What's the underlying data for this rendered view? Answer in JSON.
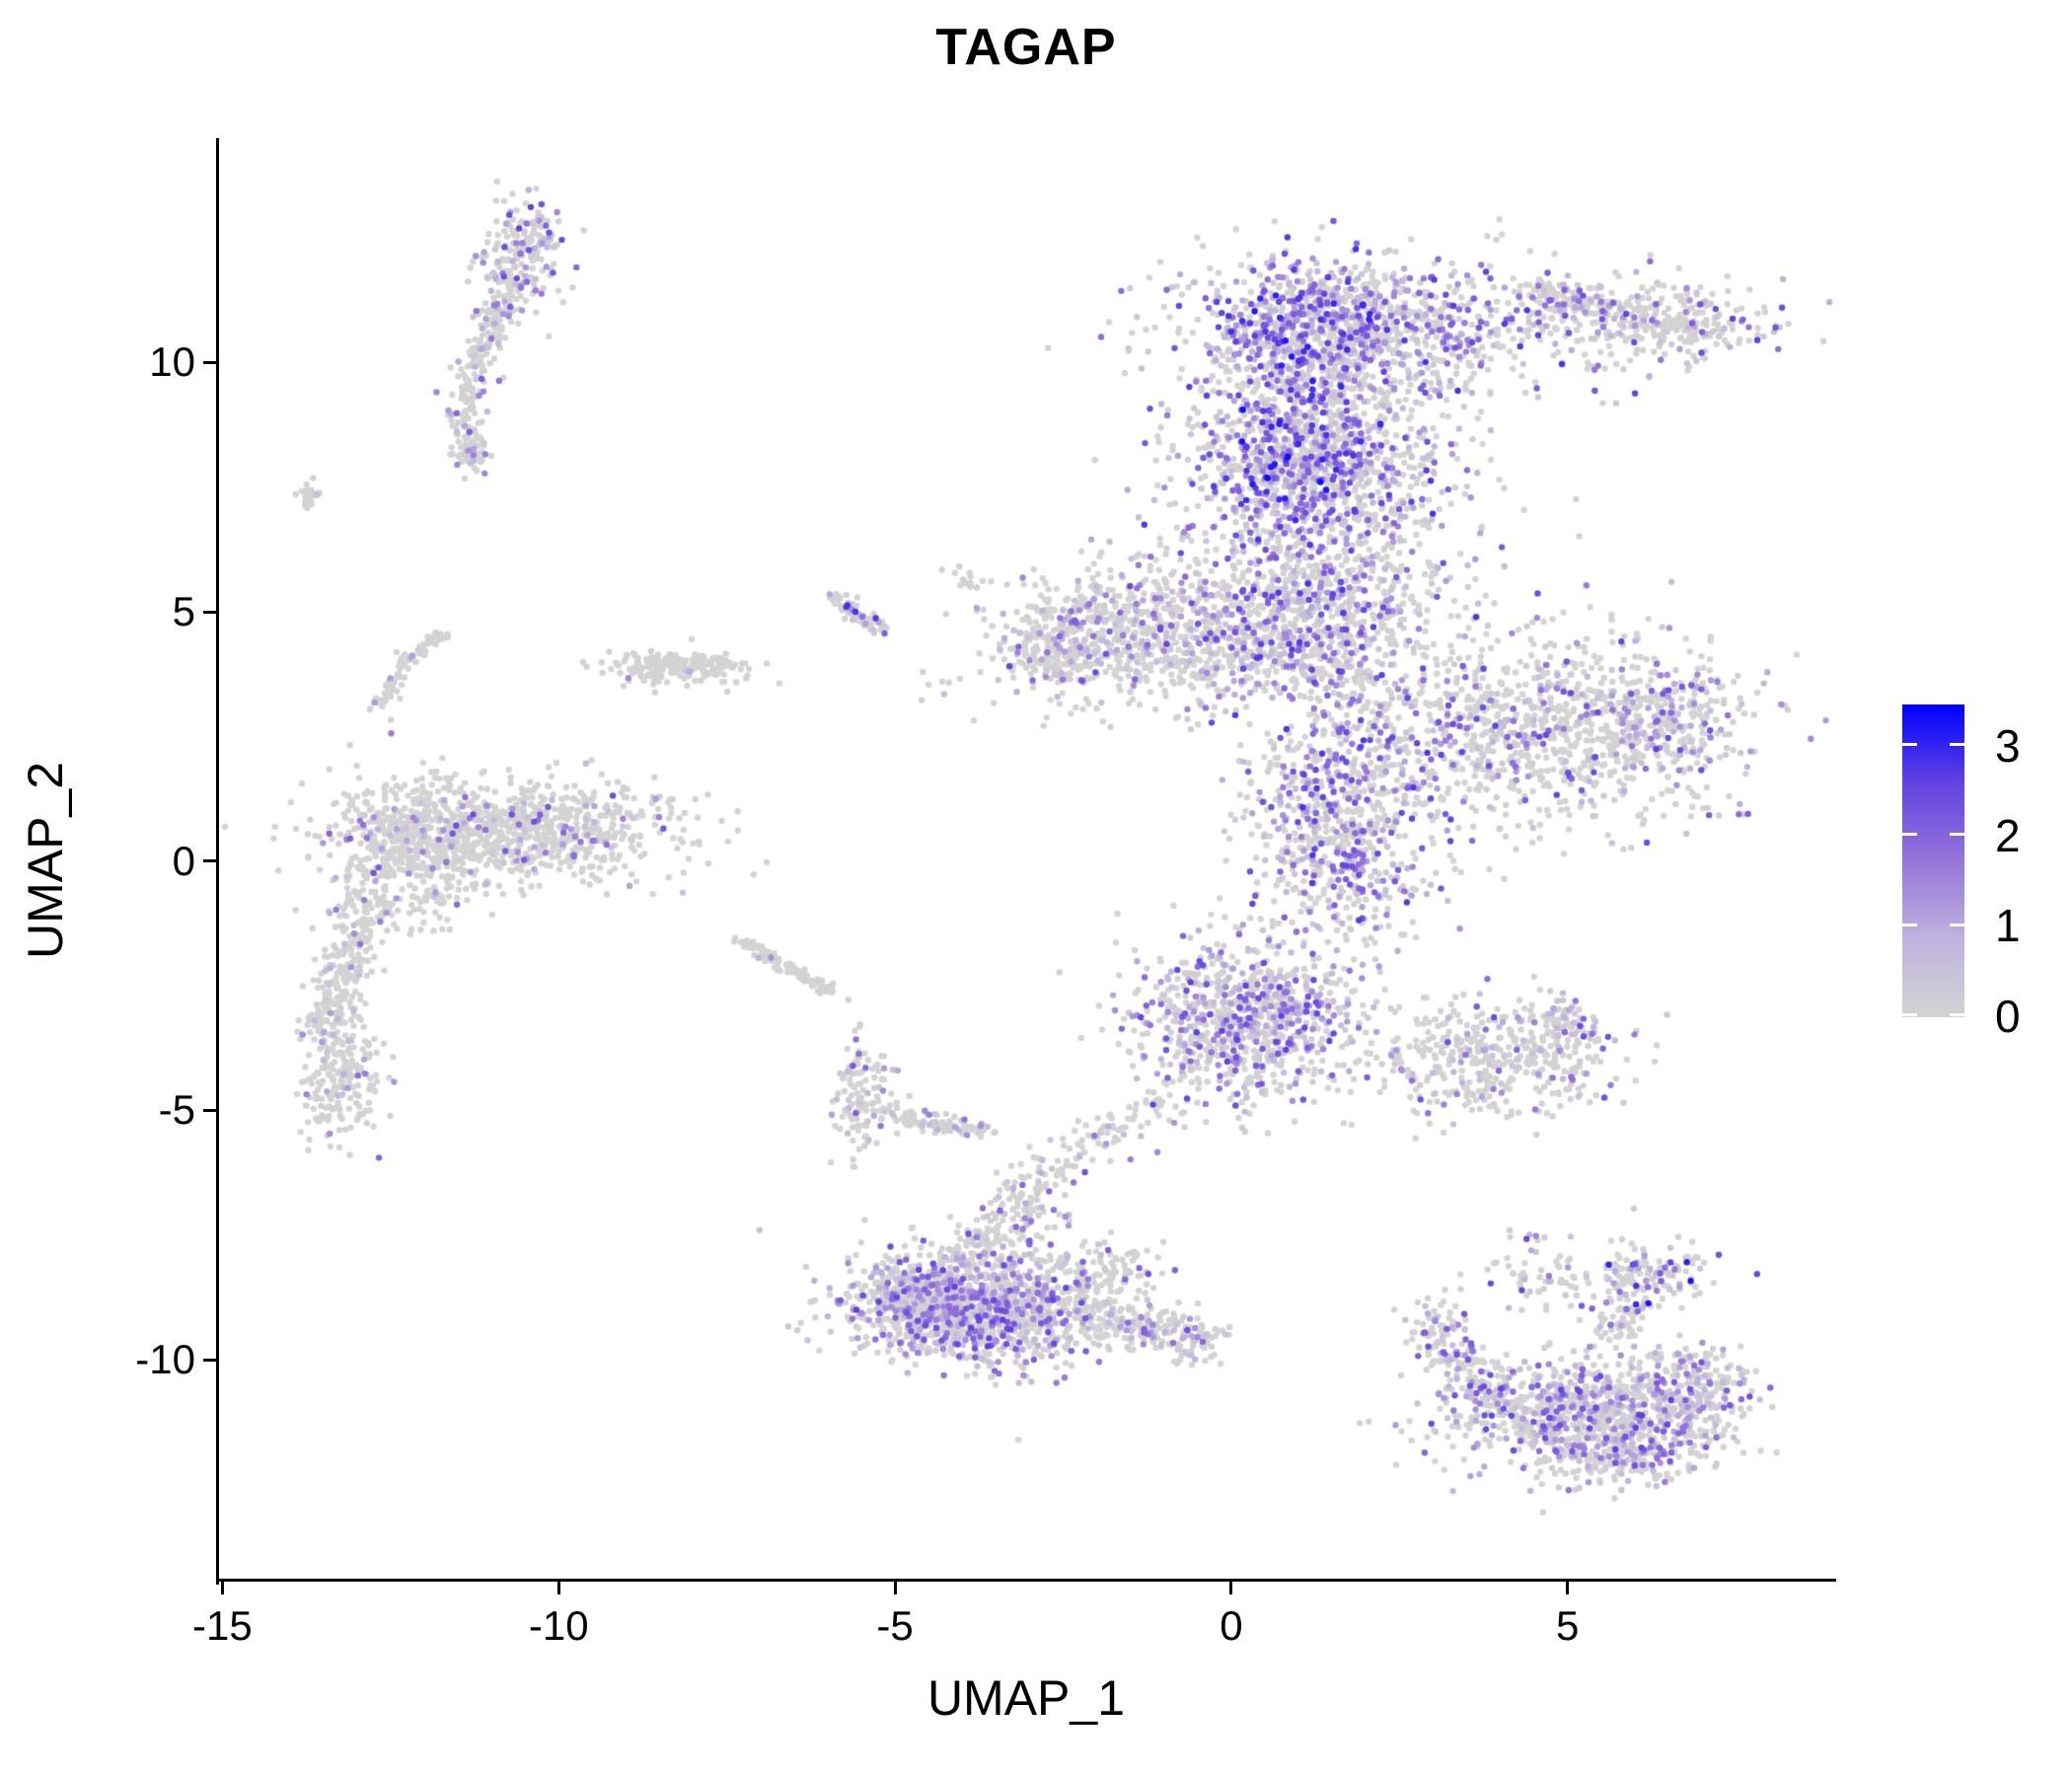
{
  "title": "TAGAP",
  "colors": {
    "background": "#ffffff",
    "axis": "#000000",
    "point_low": "#d3d3d3",
    "point_high": "#0000ff",
    "ramp": [
      "#D3D3D3",
      "#BFB3DE",
      "#9675DB",
      "#6243E0",
      "#0000FF"
    ]
  },
  "chart_data": {
    "type": "scatter",
    "title": "TAGAP",
    "xlabel": "UMAP_1",
    "ylabel": "UMAP_2",
    "x_ticks": [
      -15,
      -10,
      -5,
      0,
      5
    ],
    "y_ticks": [
      -10,
      -5,
      0,
      5,
      10
    ],
    "xlim": [
      -15.05,
      8.95
    ],
    "ylim": [
      -14.45,
      14.5
    ],
    "grid": false,
    "point_radius_px": 3.2,
    "legend": {
      "position": "right",
      "ticks": [
        0,
        1,
        2,
        3
      ],
      "max": 3.43,
      "low_label_value": 0,
      "high_label_value": 3
    },
    "clusters": [
      {
        "name": "left-top-worm-head",
        "type": "blob",
        "cx": -10.55,
        "cy": 12.2,
        "sx": 0.3,
        "sy": 0.55,
        "n": 200,
        "ef": 0.38,
        "em": 2.6
      },
      {
        "name": "left-top-worm-tail",
        "type": "arc",
        "x1": -10.75,
        "y1": 11.3,
        "cx": -11.45,
        "cy": 9.9,
        "x2": -11.35,
        "y2": 8.1,
        "w": 0.14,
        "n": 200,
        "ef": 0.2,
        "em": 2.2
      },
      {
        "name": "left-top-worm-end",
        "type": "blob",
        "cx": -11.3,
        "cy": 8.15,
        "sx": 0.12,
        "sy": 0.2,
        "n": 50,
        "ef": 0.3,
        "em": 2.0
      },
      {
        "name": "far-left-speck",
        "type": "blob",
        "cx": -13.7,
        "cy": 7.35,
        "sx": 0.08,
        "sy": 0.14,
        "n": 22,
        "ef": 0.1,
        "em": 1.0
      },
      {
        "name": "small-streak-upper-mid",
        "type": "streak",
        "x1": -5.95,
        "y1": 5.35,
        "x2": -5.2,
        "y2": 4.62,
        "w": 0.08,
        "n": 70,
        "ef": 0.2,
        "em": 3.0
      },
      {
        "name": "tiny-specks-mid",
        "type": "blob",
        "cx": -3.85,
        "cy": 5.6,
        "sx": 0.12,
        "sy": 0.08,
        "n": 12,
        "ef": 0.0,
        "em": 0
      },
      {
        "name": "small-bar-left",
        "type": "blob",
        "cx": -8.25,
        "cy": 3.9,
        "sx": 0.5,
        "sy": 0.16,
        "n": 200,
        "ef": 0.05,
        "em": 1.5
      },
      {
        "name": "left-arc",
        "type": "arc",
        "x1": -12.7,
        "y1": 2.9,
        "cx": -12.35,
        "cy": 4.25,
        "x2": -11.7,
        "y2": 4.5,
        "w": 0.07,
        "n": 80,
        "ef": 0.05,
        "em": 1.5
      },
      {
        "name": "left-band",
        "type": "blob",
        "cx": -10.7,
        "cy": 0.6,
        "sx": 1.25,
        "sy": 0.5,
        "n": 850,
        "ef": 0.13,
        "em": 2.4
      },
      {
        "name": "left-band-west",
        "type": "blob",
        "cx": -12.3,
        "cy": 0.2,
        "sx": 0.55,
        "sy": 0.75,
        "n": 380,
        "ef": 0.1,
        "em": 2.2
      },
      {
        "name": "left-tail",
        "type": "streak",
        "x1": -12.85,
        "y1": -0.7,
        "x2": -13.45,
        "y2": -3.5,
        "w": 0.22,
        "n": 260,
        "ef": 0.07,
        "em": 1.8
      },
      {
        "name": "left-tail-blob",
        "type": "blob",
        "cx": -13.25,
        "cy": -4.4,
        "sx": 0.28,
        "sy": 0.6,
        "n": 200,
        "ef": 0.12,
        "em": 2.0
      },
      {
        "name": "thin-diagonal",
        "type": "streak",
        "x1": -7.25,
        "y1": -1.6,
        "x2": -5.95,
        "y2": -2.6,
        "w": 0.07,
        "n": 100,
        "ef": 0.04,
        "em": 1.5
      },
      {
        "name": "small-cluster-mid-low",
        "type": "blob",
        "cx": -5.45,
        "cy": -4.75,
        "sx": 0.2,
        "sy": 0.55,
        "n": 120,
        "ef": 0.25,
        "em": 2.2
      },
      {
        "name": "small-cluster-streak",
        "type": "streak",
        "x1": -5.15,
        "y1": -5.1,
        "x2": -3.55,
        "y2": -5.45,
        "w": 0.1,
        "n": 80,
        "ef": 0.25,
        "em": 2.2
      },
      {
        "name": "bottom-center-apex-tip",
        "type": "streak",
        "x1": -2.75,
        "y1": -6.3,
        "x2": -3.75,
        "y2": -7.85,
        "w": 0.28,
        "n": 170,
        "ef": 0.3,
        "em": 2.4
      },
      {
        "name": "bottom-center-main",
        "type": "blob",
        "cx": -3.6,
        "cy": -8.95,
        "sx": 0.95,
        "sy": 0.55,
        "n": 1250,
        "ef": 0.42,
        "em": 2.6
      },
      {
        "name": "bottom-center-left",
        "type": "blob",
        "cx": -4.75,
        "cy": -8.85,
        "sx": 0.4,
        "sy": 0.45,
        "n": 280,
        "ef": 0.45,
        "em": 2.6
      },
      {
        "name": "bottom-center-right-sparse",
        "type": "blob",
        "cx": -2.0,
        "cy": -8.3,
        "sx": 0.4,
        "sy": 0.5,
        "n": 90,
        "ef": 0.25,
        "em": 2.2
      },
      {
        "name": "bottom-center-right-tail",
        "type": "streak",
        "x1": -1.85,
        "y1": -9.25,
        "x2": -0.25,
        "y2": -9.65,
        "w": 0.22,
        "n": 170,
        "ef": 0.3,
        "em": 2.4
      },
      {
        "name": "center-bridge",
        "type": "streak",
        "x1": -2.4,
        "y1": -5.9,
        "x2": -0.9,
        "y2": -4.7,
        "w": 0.25,
        "n": 80,
        "ef": 0.15,
        "em": 1.8
      },
      {
        "name": "bottom-right-main",
        "type": "blob",
        "cx": 5.35,
        "cy": -11.1,
        "sx": 1.05,
        "sy": 0.55,
        "n": 900,
        "ef": 0.42,
        "em": 2.6
      },
      {
        "name": "bottom-right-left-horn",
        "type": "arc",
        "x1": 3.0,
        "y1": -8.95,
        "cx": 3.3,
        "cy": -10.3,
        "x2": 4.3,
        "y2": -11.2,
        "w": 0.22,
        "n": 200,
        "ef": 0.3,
        "em": 2.4
      },
      {
        "name": "bottom-right-right-edge",
        "type": "blob",
        "cx": 6.8,
        "cy": -10.6,
        "sx": 0.45,
        "sy": 0.5,
        "n": 180,
        "ef": 0.5,
        "em": 2.2
      },
      {
        "name": "bottom-right-knob",
        "type": "blob",
        "cx": 6.15,
        "cy": -8.3,
        "sx": 0.45,
        "sy": 0.35,
        "n": 140,
        "ef": 0.35,
        "em": 3.2
      },
      {
        "name": "bottom-right-knob-bridge",
        "type": "streak",
        "x1": 6.0,
        "y1": -8.8,
        "x2": 5.6,
        "y2": -9.6,
        "w": 0.2,
        "n": 60,
        "ef": 0.3,
        "em": 2.2
      },
      {
        "name": "bottom-right-top-sparse",
        "type": "blob",
        "cx": 4.6,
        "cy": -8.4,
        "sx": 0.5,
        "sy": 0.4,
        "n": 60,
        "ef": 0.4,
        "em": 2.6
      },
      {
        "name": "bottom-right-lone",
        "type": "blob",
        "cx": 4.35,
        "cy": -7.55,
        "sx": 0.15,
        "sy": 0.12,
        "n": 8,
        "ef": 0.6,
        "em": 2.6
      },
      {
        "name": "bottom-right-bottom",
        "type": "blob",
        "cx": 5.85,
        "cy": -11.95,
        "sx": 0.5,
        "sy": 0.35,
        "n": 130,
        "ef": 0.4,
        "em": 2.4
      },
      {
        "name": "main-top",
        "type": "blob",
        "cx": 2.0,
        "cy": 10.7,
        "sx": 1.4,
        "sy": 0.7,
        "n": 950,
        "ef": 0.45,
        "em": 2.8
      },
      {
        "name": "main-top-dense",
        "type": "blob",
        "cx": 1.15,
        "cy": 10.7,
        "sx": 0.55,
        "sy": 0.65,
        "n": 300,
        "ef": 0.8,
        "em": 3.2
      },
      {
        "name": "main-ear",
        "type": "blob",
        "cx": 6.3,
        "cy": 10.85,
        "sx": 0.85,
        "sy": 0.38,
        "n": 330,
        "ef": 0.3,
        "em": 2.6
      },
      {
        "name": "main-ear-bridge",
        "type": "streak",
        "x1": 4.5,
        "y1": 11.4,
        "x2": 5.5,
        "y2": 11.15,
        "w": 0.18,
        "n": 90,
        "ef": 0.3,
        "em": 2.4
      },
      {
        "name": "main-trunk-upper",
        "type": "blob",
        "cx": 1.2,
        "cy": 7.9,
        "sx": 1.05,
        "sy": 1.15,
        "n": 1100,
        "ef": 0.5,
        "em": 2.8
      },
      {
        "name": "main-trunk-upper-dense",
        "type": "blob",
        "cx": 1.15,
        "cy": 8.4,
        "sx": 0.5,
        "sy": 0.85,
        "n": 320,
        "ef": 0.85,
        "em": 3.3
      },
      {
        "name": "main-left-wing",
        "type": "blob",
        "cx": -1.2,
        "cy": 4.5,
        "sx": 1.2,
        "sy": 0.7,
        "n": 850,
        "ef": 0.28,
        "em": 2.6
      },
      {
        "name": "main-left-wing-tip",
        "type": "blob",
        "cx": -2.55,
        "cy": 4.3,
        "sx": 0.35,
        "sy": 0.45,
        "n": 140,
        "ef": 0.22,
        "em": 2.2
      },
      {
        "name": "main-junction",
        "type": "blob",
        "cx": 1.3,
        "cy": 4.8,
        "sx": 0.95,
        "sy": 0.85,
        "n": 750,
        "ef": 0.45,
        "em": 2.8
      },
      {
        "name": "main-right-wing",
        "type": "blob",
        "cx": 4.6,
        "cy": 2.7,
        "sx": 1.45,
        "sy": 0.95,
        "n": 1000,
        "ef": 0.32,
        "em": 2.6
      },
      {
        "name": "main-right-wing-tip",
        "type": "blob",
        "cx": 6.55,
        "cy": 2.95,
        "sx": 0.5,
        "sy": 0.55,
        "n": 170,
        "ef": 0.28,
        "em": 2.4
      },
      {
        "name": "main-trunk-lower",
        "type": "blob",
        "cx": 1.55,
        "cy": 0.9,
        "sx": 0.7,
        "sy": 1.25,
        "n": 750,
        "ef": 0.5,
        "em": 2.8
      },
      {
        "name": "main-lower-lobe",
        "type": "blob",
        "cx": 0.25,
        "cy": -3.2,
        "sx": 0.85,
        "sy": 0.8,
        "n": 850,
        "ef": 0.45,
        "em": 2.6
      },
      {
        "name": "main-triangle",
        "type": "blob",
        "cx": 3.95,
        "cy": -4.0,
        "sx": 0.85,
        "sy": 0.55,
        "n": 420,
        "ef": 0.22,
        "em": 2.4
      },
      {
        "name": "main-triangle-tip",
        "type": "streak",
        "x1": 4.75,
        "y1": -2.95,
        "x2": 5.3,
        "y2": -3.5,
        "w": 0.2,
        "n": 70,
        "ef": 0.35,
        "em": 2.6
      }
    ]
  }
}
